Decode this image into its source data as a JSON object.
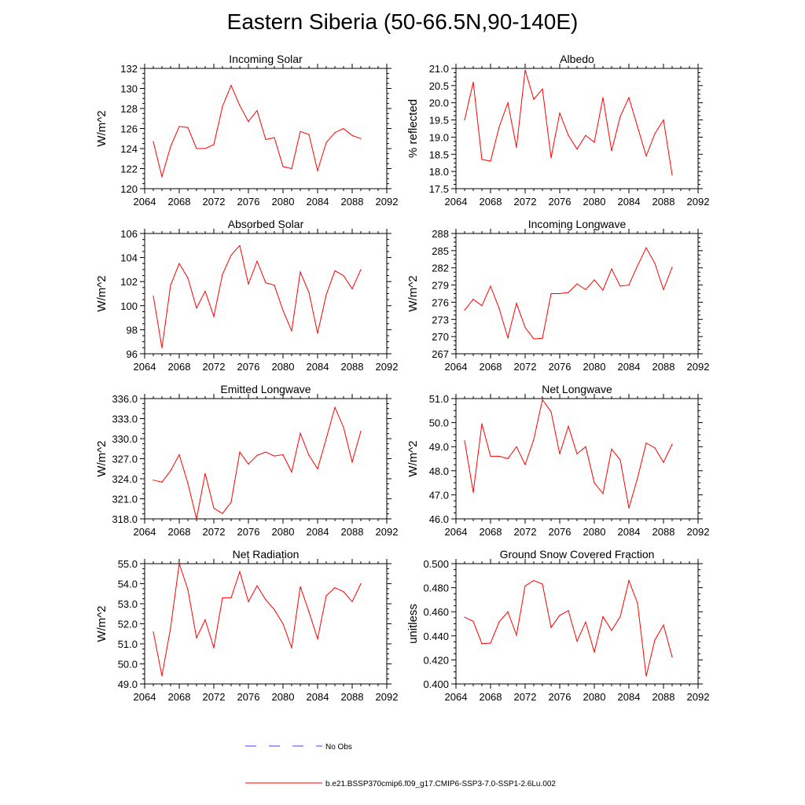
{
  "figure": {
    "title": "Eastern Siberia (50-66.5N,90-140E)"
  },
  "legend": {
    "entries": [
      {
        "label": "No Obs",
        "color": "#4040ff",
        "dash": true
      },
      {
        "label": "b.e21.BSSP370cmip6.f09_g17.CMIP6-SSP3-7.0-SSP1-2.6Lu.002",
        "color": "#ff0000",
        "dash": false
      }
    ]
  },
  "chart_data": [
    {
      "type": "line",
      "title": "Incoming Solar",
      "ylabel": "W/m^2",
      "xlim": [
        2064,
        2092
      ],
      "ylim": [
        120,
        132
      ],
      "xticks": [
        2064,
        2068,
        2072,
        2076,
        2080,
        2084,
        2088,
        2092
      ],
      "yticks": [
        "120",
        "122",
        "124",
        "126",
        "128",
        "130",
        "132"
      ],
      "x": [
        2065,
        2066,
        2067,
        2068,
        2069,
        2070,
        2071,
        2072,
        2073,
        2074,
        2075,
        2076,
        2077,
        2078,
        2079,
        2080,
        2081,
        2082,
        2083,
        2084,
        2085,
        2086,
        2087,
        2088,
        2089
      ],
      "values": [
        124.7,
        121.2,
        124.2,
        126.2,
        126.1,
        124.0,
        124.0,
        124.4,
        128.2,
        130.3,
        128.3,
        126.7,
        127.8,
        124.9,
        125.1,
        122.2,
        122.0,
        125.7,
        125.4,
        121.8,
        124.6,
        125.6,
        126.0,
        125.3,
        125.0
      ],
      "color": "#ff0000"
    },
    {
      "type": "line",
      "title": "Albedo",
      "ylabel": "% reflected",
      "xlim": [
        2064,
        2092
      ],
      "ylim": [
        17.5,
        21.0
      ],
      "xticks": [
        2064,
        2068,
        2072,
        2076,
        2080,
        2084,
        2088,
        2092
      ],
      "yticks": [
        "17.5",
        "18.0",
        "18.5",
        "19.0",
        "19.5",
        "20.0",
        "20.5",
        "21.0"
      ],
      "x": [
        2065,
        2066,
        2067,
        2068,
        2069,
        2070,
        2071,
        2072,
        2073,
        2074,
        2075,
        2076,
        2077,
        2078,
        2079,
        2080,
        2081,
        2082,
        2083,
        2084,
        2085,
        2086,
        2087,
        2088,
        2089
      ],
      "values": [
        19.5,
        20.6,
        18.35,
        18.3,
        19.3,
        20.0,
        18.7,
        20.95,
        20.1,
        20.4,
        18.4,
        19.7,
        19.05,
        18.65,
        19.05,
        18.85,
        20.15,
        18.6,
        19.6,
        20.15,
        19.3,
        18.45,
        19.1,
        19.5,
        17.9
      ],
      "color": "#ff0000"
    },
    {
      "type": "line",
      "title": "Absorbed Solar",
      "ylabel": "W/m^2",
      "xlim": [
        2064,
        2092
      ],
      "ylim": [
        96,
        106
      ],
      "xticks": [
        2064,
        2068,
        2072,
        2076,
        2080,
        2084,
        2088,
        2092
      ],
      "yticks": [
        "96",
        "98",
        "100",
        "102",
        "104",
        "106"
      ],
      "x": [
        2065,
        2066,
        2067,
        2068,
        2069,
        2070,
        2071,
        2072,
        2073,
        2074,
        2075,
        2076,
        2077,
        2078,
        2079,
        2080,
        2081,
        2082,
        2083,
        2084,
        2085,
        2086,
        2087,
        2088,
        2089
      ],
      "values": [
        100.8,
        96.5,
        101.7,
        103.5,
        102.3,
        99.8,
        101.2,
        99.1,
        102.6,
        104.2,
        105.0,
        101.8,
        103.7,
        101.9,
        101.7,
        99.6,
        97.9,
        102.8,
        101.1,
        97.7,
        100.9,
        102.9,
        102.5,
        101.4,
        103.0
      ],
      "color": "#ff0000"
    },
    {
      "type": "line",
      "title": "Incoming Longwave",
      "ylabel": "W/m^2",
      "xlim": [
        2064,
        2092
      ],
      "ylim": [
        267,
        288
      ],
      "xticks": [
        2064,
        2068,
        2072,
        2076,
        2080,
        2084,
        2088,
        2092
      ],
      "yticks": [
        "267",
        "270",
        "273",
        "276",
        "279",
        "282",
        "285",
        "288"
      ],
      "x": [
        2065,
        2066,
        2067,
        2068,
        2069,
        2070,
        2071,
        2072,
        2073,
        2074,
        2075,
        2076,
        2077,
        2078,
        2079,
        2080,
        2081,
        2082,
        2083,
        2084,
        2085,
        2086,
        2087,
        2088,
        2089
      ],
      "values": [
        274.6,
        276.5,
        275.4,
        278.8,
        274.9,
        269.8,
        275.8,
        271.6,
        269.6,
        269.7,
        277.5,
        277.5,
        277.7,
        279.2,
        278.2,
        279.9,
        278.1,
        281.8,
        278.8,
        279.0,
        282.4,
        285.5,
        282.8,
        278.2,
        282.1
      ],
      "color": "#ff0000"
    },
    {
      "type": "line",
      "title": "Emitted Longwave",
      "ylabel": "W/m^2",
      "xlim": [
        2064,
        2092
      ],
      "ylim": [
        318,
        336
      ],
      "xticks": [
        2064,
        2068,
        2072,
        2076,
        2080,
        2084,
        2088,
        2092
      ],
      "yticks": [
        "318.0",
        "321.0",
        "324.0",
        "327.0",
        "330.0",
        "333.0",
        "336.0"
      ],
      "x": [
        2065,
        2066,
        2067,
        2068,
        2069,
        2070,
        2071,
        2072,
        2073,
        2074,
        2075,
        2076,
        2077,
        2078,
        2079,
        2080,
        2081,
        2082,
        2083,
        2084,
        2085,
        2086,
        2087,
        2088,
        2089
      ],
      "values": [
        323.8,
        323.5,
        325.2,
        327.6,
        323.3,
        318.0,
        324.8,
        319.6,
        318.8,
        320.5,
        328.0,
        326.2,
        327.5,
        328.0,
        327.4,
        327.6,
        325.0,
        330.8,
        327.5,
        325.5,
        330.0,
        334.7,
        331.7,
        326.5,
        331.1
      ],
      "color": "#ff0000"
    },
    {
      "type": "line",
      "title": "Net Longwave",
      "ylabel": "W/m^2",
      "xlim": [
        2064,
        2092
      ],
      "ylim": [
        46,
        51
      ],
      "xticks": [
        2064,
        2068,
        2072,
        2076,
        2080,
        2084,
        2088,
        2092
      ],
      "yticks": [
        "46.0",
        "47.0",
        "48.0",
        "49.0",
        "50.0",
        "51.0"
      ],
      "x": [
        2065,
        2066,
        2067,
        2068,
        2069,
        2070,
        2071,
        2072,
        2073,
        2074,
        2075,
        2076,
        2077,
        2078,
        2079,
        2080,
        2081,
        2082,
        2083,
        2084,
        2085,
        2086,
        2087,
        2088,
        2089
      ],
      "values": [
        49.25,
        47.1,
        49.95,
        48.6,
        48.6,
        48.5,
        49.0,
        48.25,
        49.3,
        50.95,
        50.45,
        48.7,
        49.85,
        48.7,
        49.0,
        47.5,
        47.05,
        48.9,
        48.45,
        46.45,
        47.7,
        49.15,
        48.95,
        48.35,
        49.1
      ],
      "color": "#ff0000"
    },
    {
      "type": "line",
      "title": "Net Radiation",
      "ylabel": "W/m^2",
      "xlim": [
        2064,
        2092
      ],
      "ylim": [
        49,
        55
      ],
      "xticks": [
        2064,
        2068,
        2072,
        2076,
        2080,
        2084,
        2088,
        2092
      ],
      "yticks": [
        "49.0",
        "50.0",
        "51.0",
        "52.0",
        "53.0",
        "54.0",
        "55.0"
      ],
      "x": [
        2065,
        2066,
        2067,
        2068,
        2069,
        2070,
        2071,
        2072,
        2073,
        2074,
        2075,
        2076,
        2077,
        2078,
        2079,
        2080,
        2081,
        2082,
        2083,
        2084,
        2085,
        2086,
        2087,
        2088,
        2089
      ],
      "values": [
        51.6,
        49.4,
        51.8,
        55.0,
        53.7,
        51.3,
        52.2,
        50.8,
        53.3,
        53.3,
        54.6,
        53.1,
        53.9,
        53.2,
        52.7,
        52.0,
        50.8,
        53.85,
        52.6,
        51.25,
        53.4,
        53.8,
        53.6,
        53.1,
        54.0
      ],
      "color": "#ff0000"
    },
    {
      "type": "line",
      "title": "Ground Snow Covered Fraction",
      "ylabel": "unitless",
      "xlim": [
        2064,
        2092
      ],
      "ylim": [
        0.4,
        0.5
      ],
      "xticks": [
        2064,
        2068,
        2072,
        2076,
        2080,
        2084,
        2088,
        2092
      ],
      "yticks": [
        "0.400",
        "0.420",
        "0.440",
        "0.460",
        "0.480",
        "0.500"
      ],
      "x": [
        2065,
        2066,
        2067,
        2068,
        2069,
        2070,
        2071,
        2072,
        2073,
        2074,
        2075,
        2076,
        2077,
        2078,
        2079,
        2080,
        2081,
        2082,
        2083,
        2084,
        2085,
        2086,
        2087,
        2088,
        2089
      ],
      "values": [
        0.4555,
        0.452,
        0.4335,
        0.434,
        0.4515,
        0.46,
        0.4405,
        0.4815,
        0.486,
        0.483,
        0.447,
        0.457,
        0.461,
        0.4355,
        0.4515,
        0.4265,
        0.456,
        0.4445,
        0.456,
        0.486,
        0.467,
        0.4065,
        0.4365,
        0.449,
        0.4225
      ],
      "color": "#ff0000"
    }
  ]
}
